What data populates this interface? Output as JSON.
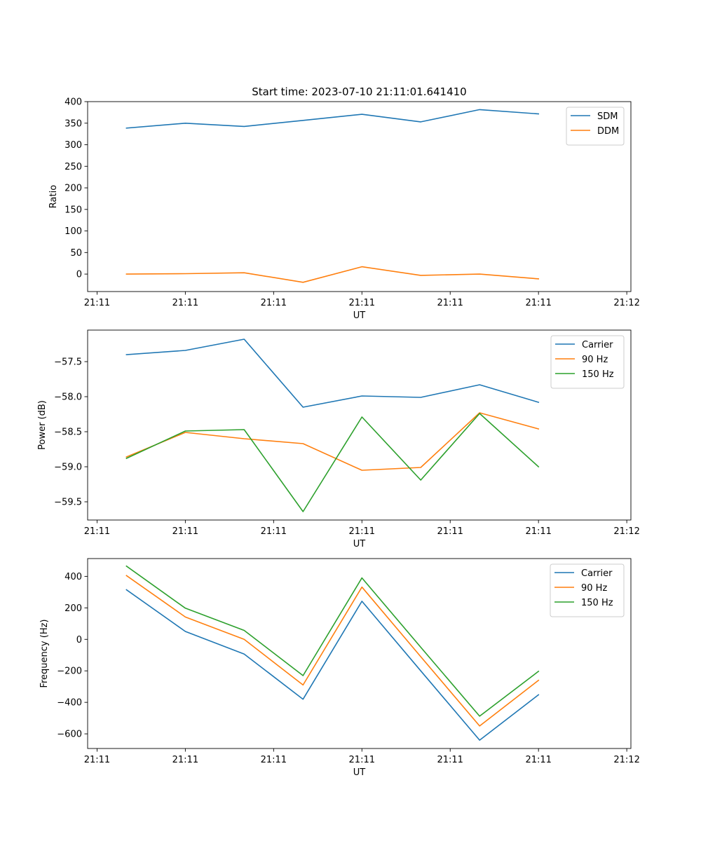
{
  "figure": {
    "title": "Start time: 2023-07-10 21:11:01.641410"
  },
  "chart_data": [
    {
      "type": "line",
      "xlabel": "UT",
      "ylabel": "Ratio",
      "x": [
        1,
        2,
        3,
        4,
        5,
        6,
        7,
        8
      ],
      "xlim": [
        0.34,
        9.57
      ],
      "xticks": [
        0.5,
        2.0,
        3.5,
        5.0,
        6.5,
        8.0,
        9.5
      ],
      "xtick_labels": [
        "21:11",
        "21:11",
        "21:11",
        "21:11",
        "21:11",
        "21:11",
        "21:12"
      ],
      "ylim": [
        -40.5,
        400
      ],
      "yticks": [
        0,
        50,
        100,
        150,
        200,
        250,
        300,
        350,
        400
      ],
      "ytick_labels": [
        "0",
        "50",
        "100",
        "150",
        "200",
        "250",
        "300",
        "350",
        "400"
      ],
      "series": [
        {
          "name": "SDM",
          "color": "#1f77b4",
          "values": [
            338.5,
            350,
            342.5,
            356.5,
            370.5,
            353,
            381.5,
            371.5
          ]
        },
        {
          "name": "DDM",
          "color": "#ff7f0e",
          "values": [
            0,
            1,
            3,
            -19,
            17,
            -3,
            0,
            -11
          ]
        }
      ],
      "legend": "top-right"
    },
    {
      "type": "line",
      "xlabel": "UT",
      "ylabel": "Power (dB)",
      "x": [
        1,
        2,
        3,
        4,
        5,
        6,
        7,
        8
      ],
      "xlim": [
        0.34,
        9.57
      ],
      "xticks": [
        0.5,
        2.0,
        3.5,
        5.0,
        6.5,
        8.0,
        9.5
      ],
      "xtick_labels": [
        "21:11",
        "21:11",
        "21:11",
        "21:11",
        "21:11",
        "21:11",
        "21:12"
      ],
      "ylim": [
        -59.76,
        -57.05
      ],
      "yticks": [
        -59.5,
        -59.0,
        -58.5,
        -58.0,
        -57.5
      ],
      "ytick_labels": [
        "−59.5",
        "−59.0",
        "−58.5",
        "−58.0",
        "−57.5"
      ],
      "series": [
        {
          "name": "Carrier",
          "color": "#1f77b4",
          "values": [
            -57.4,
            -57.34,
            -57.18,
            -58.15,
            -57.99,
            -58.01,
            -57.83,
            -58.08
          ]
        },
        {
          "name": "90 Hz",
          "color": "#ff7f0e",
          "values": [
            -58.86,
            -58.51,
            -58.6,
            -58.67,
            -59.05,
            -59.01,
            -58.23,
            -58.46
          ]
        },
        {
          "name": "150 Hz",
          "color": "#2ca02c",
          "values": [
            -58.88,
            -58.49,
            -58.47,
            -59.64,
            -58.29,
            -59.19,
            -58.24,
            -59.0
          ]
        }
      ],
      "legend": "top-right"
    },
    {
      "type": "line",
      "xlabel": "UT",
      "ylabel": "Frequency (Hz)",
      "x": [
        1,
        2,
        3,
        4,
        5,
        6,
        7,
        8
      ],
      "xlim": [
        0.34,
        9.57
      ],
      "xticks": [
        0.5,
        2.0,
        3.5,
        5.0,
        6.5,
        8.0,
        9.5
      ],
      "xtick_labels": [
        "21:11",
        "21:11",
        "21:11",
        "21:11",
        "21:11",
        "21:11",
        "21:12"
      ],
      "ylim": [
        -693,
        513
      ],
      "yticks": [
        -600,
        -400,
        -200,
        0,
        200,
        400
      ],
      "ytick_labels": [
        "−600",
        "−400",
        "−200",
        "0",
        "200",
        "400"
      ],
      "series": [
        {
          "name": "Carrier",
          "color": "#1f77b4",
          "values": [
            315,
            50,
            -93,
            -380,
            242,
            -200,
            -640,
            -352
          ]
        },
        {
          "name": "90 Hz",
          "color": "#ff7f0e",
          "values": [
            405,
            142,
            0,
            -290,
            332,
            -110,
            -550,
            -260
          ]
        },
        {
          "name": "150 Hz",
          "color": "#2ca02c",
          "values": [
            465,
            198,
            57,
            -230,
            390,
            -50,
            -488,
            -203
          ]
        }
      ],
      "legend": "top-right"
    }
  ]
}
